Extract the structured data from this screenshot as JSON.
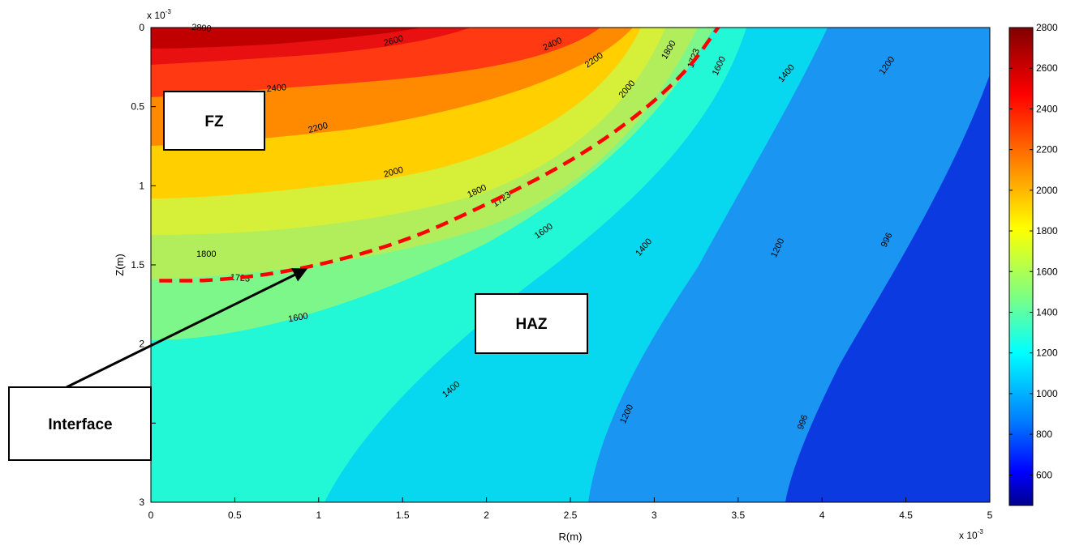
{
  "chart_data": {
    "type": "contour",
    "xlabel": "R(m)",
    "ylabel": "Z(m)",
    "x_multiplier": "x 10",
    "x_exponent": "-3",
    "y_multiplier": "x 10",
    "y_exponent": "-3",
    "xlim": [
      0,
      5
    ],
    "ylim": [
      0,
      3
    ],
    "y_axis_reversed": true,
    "x_ticks": [
      "0",
      "0.5",
      "1",
      "1.5",
      "2",
      "2.5",
      "3",
      "3.5",
      "4",
      "4.5",
      "5"
    ],
    "y_ticks": [
      "0",
      "0.5",
      "1",
      "1.5",
      "2",
      "2.5",
      "3"
    ],
    "colorbar": {
      "ticks": [
        "2800",
        "2600",
        "2400",
        "2200",
        "2000",
        "1800",
        "1600",
        "1400",
        "1200",
        "1000",
        "800",
        "600"
      ],
      "range": [
        450,
        2800
      ],
      "colormap": "jet"
    },
    "contour_levels": [
      {
        "level": 2800,
        "color": "#c00000"
      },
      {
        "level": 2600,
        "color": "#e81010"
      },
      {
        "level": 2400,
        "color": "#ff3a12"
      },
      {
        "level": 2200,
        "color": "#ff8a00"
      },
      {
        "level": 2000,
        "color": "#ffcf00"
      },
      {
        "level": 1800,
        "color": "#d6f03a"
      },
      {
        "level": 1723,
        "color": "#b2ee5c"
      },
      {
        "level": 1600,
        "color": "#7ef78a"
      },
      {
        "level": 1400,
        "color": "#22f7d6"
      },
      {
        "level": 1200,
        "color": "#08d8ef"
      },
      {
        "level": 996,
        "color": "#1a96f2"
      },
      {
        "level": 600,
        "color": "#0a3ae0"
      }
    ],
    "contour_labels": [
      {
        "text": "2800",
        "x": 0.3,
        "z": 0.02,
        "rot": 5
      },
      {
        "text": "2600",
        "x": 1.45,
        "z": 0.1,
        "rot": -15
      },
      {
        "text": "2400",
        "x": 2.4,
        "z": 0.12,
        "rot": -25
      },
      {
        "text": "2400",
        "x": 0.75,
        "z": 0.4,
        "rot": -5
      },
      {
        "text": "2200",
        "x": 2.65,
        "z": 0.22,
        "rot": -35
      },
      {
        "text": "2200",
        "x": 1.0,
        "z": 0.65,
        "rot": -15
      },
      {
        "text": "2000",
        "x": 2.85,
        "z": 0.4,
        "rot": -50
      },
      {
        "text": "2000",
        "x": 1.45,
        "z": 0.93,
        "rot": -15
      },
      {
        "text": "1800",
        "x": 3.1,
        "z": 0.15,
        "rot": -60
      },
      {
        "text": "1800",
        "x": 1.95,
        "z": 1.05,
        "rot": -25
      },
      {
        "text": "1800",
        "x": 0.33,
        "z": 1.45,
        "rot": 0
      },
      {
        "text": "1723",
        "x": 3.25,
        "z": 0.2,
        "rot": -70
      },
      {
        "text": "1723",
        "x": 2.1,
        "z": 1.1,
        "rot": -35
      },
      {
        "text": "1723",
        "x": 0.53,
        "z": 1.6,
        "rot": 5
      },
      {
        "text": "1600",
        "x": 3.4,
        "z": 0.25,
        "rot": -65
      },
      {
        "text": "1600",
        "x": 2.35,
        "z": 1.3,
        "rot": -35
      },
      {
        "text": "1600",
        "x": 0.88,
        "z": 1.85,
        "rot": -10
      },
      {
        "text": "1400",
        "x": 3.8,
        "z": 0.3,
        "rot": -50
      },
      {
        "text": "1400",
        "x": 2.95,
        "z": 1.4,
        "rot": -50
      },
      {
        "text": "1400",
        "x": 1.8,
        "z": 2.3,
        "rot": -40
      },
      {
        "text": "1200",
        "x": 4.4,
        "z": 0.25,
        "rot": -55
      },
      {
        "text": "1200",
        "x": 3.75,
        "z": 1.4,
        "rot": -65
      },
      {
        "text": "1200",
        "x": 2.85,
        "z": 2.45,
        "rot": -65
      },
      {
        "text": "996",
        "x": 4.4,
        "z": 1.35,
        "rot": -65
      },
      {
        "text": "996",
        "x": 3.9,
        "z": 2.5,
        "rot": -70
      }
    ],
    "interface_curve": [
      [
        0.05,
        1.6
      ],
      [
        0.4,
        1.6
      ],
      [
        0.9,
        1.53
      ],
      [
        1.5,
        1.36
      ],
      [
        2.0,
        1.12
      ],
      [
        2.5,
        0.85
      ],
      [
        2.9,
        0.56
      ],
      [
        3.2,
        0.27
      ],
      [
        3.38,
        0.0
      ]
    ]
  },
  "annotations": {
    "fz": "FZ",
    "haz": "HAZ",
    "interface": "Interface"
  }
}
